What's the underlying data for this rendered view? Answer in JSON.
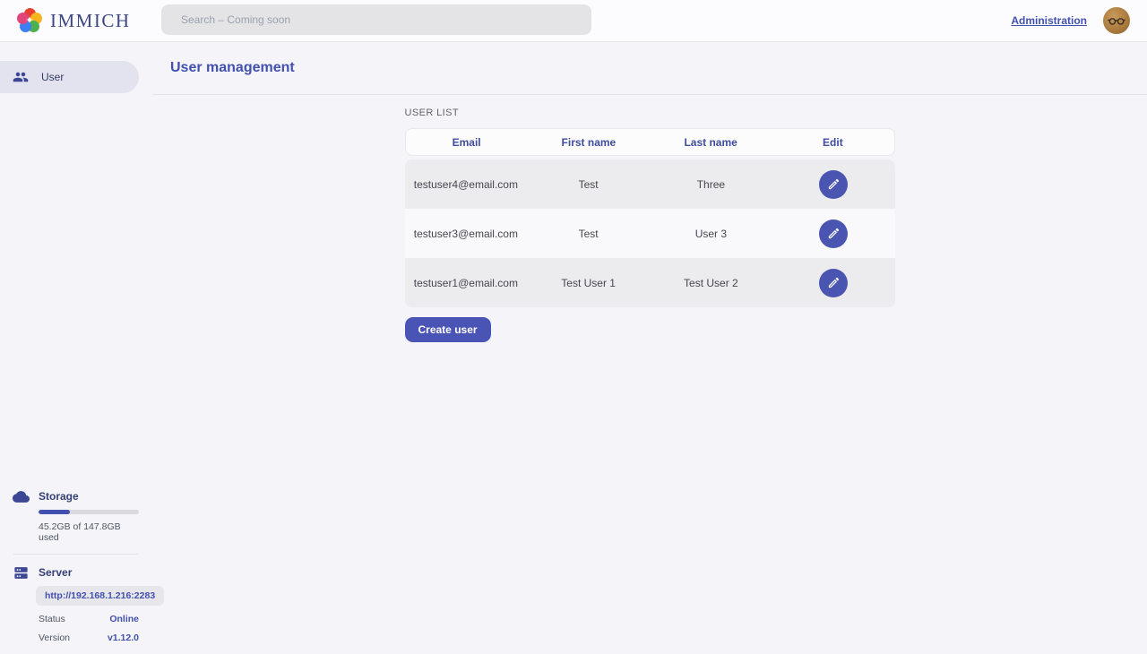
{
  "topbar": {
    "brand": "IMMICH",
    "search_placeholder": "Search – Coming soon",
    "admin_link": "Administration"
  },
  "sidebar": {
    "items": [
      {
        "label": "User"
      }
    ]
  },
  "storage": {
    "title": "Storage",
    "usage_text": "45.2GB of 147.8GB used",
    "percent_used": 31
  },
  "server_info": {
    "title": "Server",
    "url": "http://192.168.1.216:2283",
    "status_label": "Status",
    "status_value": "Online",
    "version_label": "Version",
    "version_value": "v1.12.0"
  },
  "main": {
    "title": "User management",
    "section_label": "USER LIST",
    "create_button": "Create user"
  },
  "table": {
    "headers": [
      "Email",
      "First name",
      "Last name",
      "Edit"
    ],
    "rows": [
      {
        "email": "testuser4@email.com",
        "first_name": "Test",
        "last_name": "Three"
      },
      {
        "email": "testuser3@email.com",
        "first_name": "Test",
        "last_name": "User 3"
      },
      {
        "email": "testuser1@email.com",
        "first_name": "Test User 1",
        "last_name": "Test User 2"
      }
    ]
  },
  "colors": {
    "primary": "#4250af",
    "edit_button": "#4a55b2",
    "online_status": "#4250af"
  }
}
